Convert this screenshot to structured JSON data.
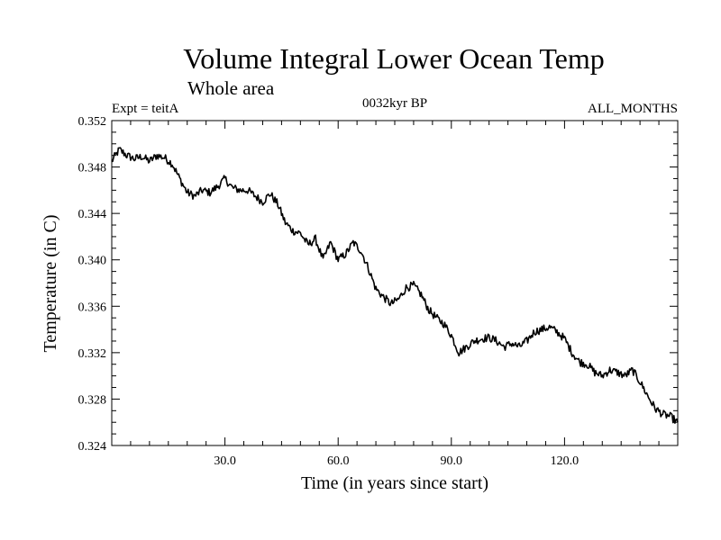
{
  "chart_data": {
    "type": "line",
    "title": "Volume Integral Lower Ocean Temp",
    "subtitle": "Whole area",
    "experiment": "Expt = teitA",
    "period": "0032kyr BP",
    "months": "ALL_MONTHS",
    "xlabel": "Time (in years since start)",
    "ylabel": "Temperature (in C)",
    "xlim": [
      0,
      150
    ],
    "ylim": [
      0.324,
      0.352
    ],
    "xticks": [
      30,
      60,
      90,
      120
    ],
    "xtick_labels": [
      "30.0",
      "60.0",
      "90.0",
      "120.0"
    ],
    "yticks": [
      0.324,
      0.328,
      0.332,
      0.336,
      0.34,
      0.344,
      0.348,
      0.352
    ],
    "ytick_labels": [
      "0.324",
      "0.328",
      "0.332",
      "0.336",
      "0.340",
      "0.344",
      "0.348",
      "0.352"
    ],
    "grid": false,
    "line_color": "#000000",
    "series": [
      {
        "name": "teitA",
        "x": [
          0,
          2,
          4,
          6,
          8,
          10,
          12,
          14,
          16,
          18,
          20,
          22,
          24,
          26,
          28,
          30,
          32,
          34,
          36,
          38,
          40,
          42,
          44,
          46,
          48,
          50,
          52,
          54,
          56,
          58,
          60,
          62,
          64,
          66,
          68,
          70,
          72,
          74,
          76,
          78,
          80,
          82,
          84,
          86,
          88,
          90,
          92,
          94,
          96,
          98,
          100,
          102,
          104,
          106,
          108,
          110,
          112,
          114,
          116,
          118,
          120,
          122,
          124,
          126,
          128,
          130,
          132,
          134,
          136,
          138,
          140,
          142,
          144,
          146,
          148,
          150
        ],
        "values": [
          0.3485,
          0.3495,
          0.349,
          0.3487,
          0.3489,
          0.3485,
          0.349,
          0.3488,
          0.3483,
          0.347,
          0.3458,
          0.3455,
          0.346,
          0.3458,
          0.3463,
          0.347,
          0.3462,
          0.346,
          0.346,
          0.3455,
          0.345,
          0.3457,
          0.3448,
          0.3432,
          0.3425,
          0.3423,
          0.3413,
          0.3418,
          0.34,
          0.3415,
          0.34,
          0.3405,
          0.3415,
          0.3408,
          0.3393,
          0.3375,
          0.3368,
          0.3362,
          0.3366,
          0.3376,
          0.3378,
          0.337,
          0.3357,
          0.335,
          0.3345,
          0.3335,
          0.332,
          0.3325,
          0.333,
          0.3332,
          0.3333,
          0.333,
          0.3325,
          0.3328,
          0.3325,
          0.333,
          0.3338,
          0.334,
          0.3342,
          0.3338,
          0.3332,
          0.332,
          0.3312,
          0.331,
          0.3303,
          0.33,
          0.3305,
          0.3303,
          0.33,
          0.3305,
          0.3295,
          0.3283,
          0.3272,
          0.3267,
          0.3265,
          0.326
        ]
      }
    ]
  }
}
